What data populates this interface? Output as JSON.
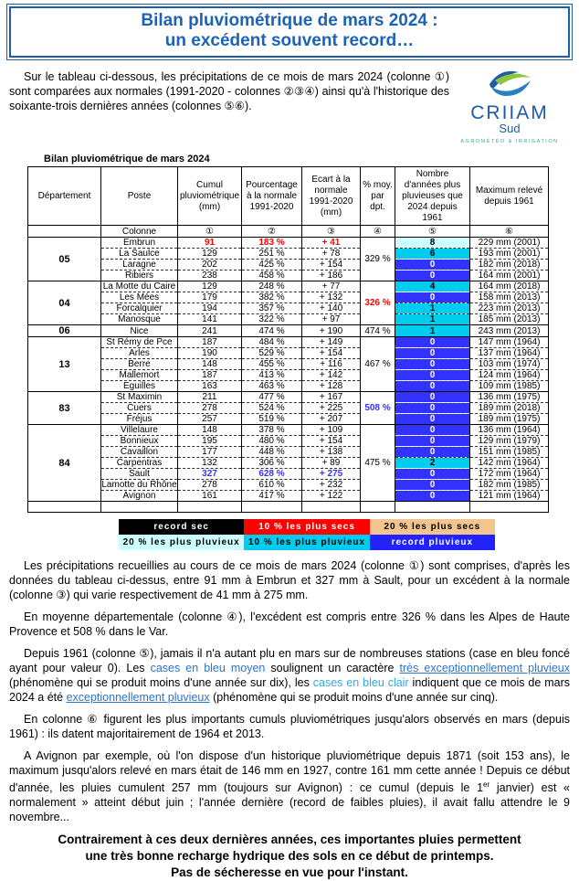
{
  "colors": {
    "title_blue": "#1c63b7",
    "border_blue": "#1f5ca8",
    "value_red": "#ff0000",
    "value_blue": "#3333ff",
    "cell_pale_cyan": "#ccffff",
    "cell_cyan": "#00ccee",
    "cell_dark_blue": "#3333ff",
    "legend_peach": "#f2c48e",
    "legend_red": "#ff0000",
    "legend_blue": "#2222ff",
    "logo_blue": "#1f5ca8",
    "logo_green": "#8cc63e",
    "logo_teal": "#3aa6a0"
  },
  "title": {
    "line1": "Bilan pluviométrique de mars 2024 :",
    "line2": "un excédent souvent record…"
  },
  "intro": "Sur le tableau ci-dessous, les précipitations de ce mois de mars 2024 (colonne ①) sont comparées aux normales (1991-2020 - colonnes ②③④) ainsi qu'à l'historique des soixante-trois dernières années (colonnes ⑤⑥).",
  "logo": {
    "word": "CRIIAM",
    "sub": "Sud",
    "tagline": "AGROMÉTÉO & IRRIGATION"
  },
  "table": {
    "title": "Bilan pluviométrique de mars 2024",
    "headers": [
      "Département",
      "Poste",
      "Cumul pluviométrique (mm)",
      "Pourcentage à la normale 1991-2020",
      "Ecart à la normale 1991-2020 (mm)",
      "% moy. par dpt.",
      "Nombre d'années plus pluvieuses que 2024 depuis 1961",
      "Maximum relevé depuis 1961"
    ],
    "colonne_row": {
      "label": "Colonne",
      "numbers": [
        "①",
        "②",
        "③",
        "④",
        "⑤",
        "⑥"
      ]
    },
    "groups": [
      {
        "dept": "05",
        "pct_moy": "329 %",
        "pct_hl": "",
        "rows": [
          {
            "poste": "Embrun",
            "cumul": "91",
            "pct": "183 %",
            "ecart": "+ 41",
            "hl": "red",
            "n": "8",
            "nbg": "pale",
            "max": "229 mm (2001)"
          },
          {
            "poste": "La Saulce",
            "cumul": "129",
            "pct": "251 %",
            "ecart": "+ 78",
            "hl": "",
            "n": "6",
            "nbg": "cyan",
            "max": "193 mm (2001)"
          },
          {
            "poste": "Laragne",
            "cumul": "202",
            "pct": "425 %",
            "ecart": "+ 154",
            "hl": "",
            "n": "0",
            "nbg": "blue",
            "max": "182 mm (2018)"
          },
          {
            "poste": "Ribiers",
            "cumul": "238",
            "pct": "458 %",
            "ecart": "+ 186",
            "hl": "",
            "n": "0",
            "nbg": "blue",
            "max": "164 mm (2001)"
          }
        ]
      },
      {
        "dept": "04",
        "pct_moy": "326 %",
        "pct_hl": "red",
        "rows": [
          {
            "poste": "La Motte du Caire",
            "cumul": "129",
            "pct": "248 %",
            "ecart": "+ 77",
            "hl": "",
            "n": "4",
            "nbg": "cyan",
            "max": "164 mm (2018)"
          },
          {
            "poste": "Les Mées",
            "cumul": "179",
            "pct": "382 %",
            "ecart": "+ 132",
            "hl": "",
            "n": "0",
            "nbg": "blue",
            "max": "158 mm (2013)"
          },
          {
            "poste": "Forcalquier",
            "cumul": "194",
            "pct": "357 %",
            "ecart": "+ 140",
            "hl": "",
            "n": "1",
            "nbg": "cyan",
            "max": "223 mm (2013)"
          },
          {
            "poste": "Manosque",
            "cumul": "141",
            "pct": "322 %",
            "ecart": "+ 97",
            "hl": "",
            "n": "1",
            "nbg": "cyan",
            "max": "185 mm (2013)"
          }
        ]
      },
      {
        "dept": "06",
        "pct_moy": "474 %",
        "pct_hl": "",
        "rows": [
          {
            "poste": "Nice",
            "cumul": "241",
            "pct": "474 %",
            "ecart": "+ 190",
            "hl": "",
            "n": "1",
            "nbg": "cyan",
            "max": "243 mm (2013)"
          }
        ]
      },
      {
        "dept": "13",
        "pct_moy": "467 %",
        "pct_hl": "",
        "rows": [
          {
            "poste": "St Rémy de Pce",
            "cumul": "187",
            "pct": "484 %",
            "ecart": "+ 149",
            "hl": "",
            "n": "0",
            "nbg": "blue",
            "max": "147 mm (1964)"
          },
          {
            "poste": "Arles",
            "cumul": "190",
            "pct": "529 %",
            "ecart": "+ 154",
            "hl": "",
            "n": "0",
            "nbg": "blue",
            "max": "137 mm (1964)"
          },
          {
            "poste": "Berre",
            "cumul": "148",
            "pct": "455 %",
            "ecart": "+ 116",
            "hl": "",
            "n": "0",
            "nbg": "blue",
            "max": "103 mm (1974)"
          },
          {
            "poste": "Mallemort",
            "cumul": "187",
            "pct": "413 %",
            "ecart": "+ 142",
            "hl": "",
            "n": "0",
            "nbg": "blue",
            "max": "124 mm (1964)"
          },
          {
            "poste": "Eguilles",
            "cumul": "163",
            "pct": "463 %",
            "ecart": "+ 128",
            "hl": "",
            "n": "0",
            "nbg": "blue",
            "max": "109 mm (1985)"
          }
        ]
      },
      {
        "dept": "83",
        "pct_moy": "508 %",
        "pct_hl": "blue",
        "rows": [
          {
            "poste": "St Maximin",
            "cumul": "211",
            "pct": "477 %",
            "ecart": "+ 167",
            "hl": "",
            "n": "0",
            "nbg": "blue",
            "max": "136 mm (1975)"
          },
          {
            "poste": "Cuers",
            "cumul": "278",
            "pct": "524 %",
            "ecart": "+ 225",
            "hl": "",
            "n": "0",
            "nbg": "blue",
            "max": "189 mm (2018)"
          },
          {
            "poste": "Fréjus",
            "cumul": "257",
            "pct": "519 %",
            "ecart": "+ 207",
            "hl": "",
            "n": "0",
            "nbg": "blue",
            "max": "189 mm (1975)"
          }
        ]
      },
      {
        "dept": "84",
        "pct_moy": "475 %",
        "pct_hl": "",
        "rows": [
          {
            "poste": "Villelaure",
            "cumul": "148",
            "pct": "378 %",
            "ecart": "+ 109",
            "hl": "",
            "n": "0",
            "nbg": "blue",
            "max": "136 mm (1964)"
          },
          {
            "poste": "Bonnieux",
            "cumul": "195",
            "pct": "480 %",
            "ecart": "+ 154",
            "hl": "",
            "n": "0",
            "nbg": "blue",
            "max": "129 mm (1979)"
          },
          {
            "poste": "Cavaillon",
            "cumul": "177",
            "pct": "448 %",
            "ecart": "+ 138",
            "hl": "",
            "n": "0",
            "nbg": "blue",
            "max": "151 mm (1985)"
          },
          {
            "poste": "Carpentras",
            "cumul": "132",
            "pct": "306 %",
            "ecart": "+ 89",
            "hl": "",
            "n": "2",
            "nbg": "cyan",
            "max": "142 mm (1964)"
          },
          {
            "poste": "Sault",
            "cumul": "327",
            "pct": "628 %",
            "ecart": "+ 275",
            "hl": "blue",
            "n": "0",
            "nbg": "blue",
            "max": "172 mm (1964)"
          },
          {
            "poste": "Lamotte du Rhône",
            "cumul": "278",
            "pct": "610 %",
            "ecart": "+ 232",
            "hl": "",
            "n": "0",
            "nbg": "blue",
            "max": "182 mm (1985)"
          },
          {
            "poste": "Avignon",
            "cumul": "161",
            "pct": "417 %",
            "ecart": "+ 122",
            "hl": "",
            "n": "0",
            "nbg": "blue",
            "max": "121 mm (1964)"
          }
        ]
      }
    ]
  },
  "legend": [
    {
      "label": "record sec",
      "cls": "lg-black"
    },
    {
      "label": "10 % les plus secs",
      "cls": "lg-red"
    },
    {
      "label": "20 % les plus secs",
      "cls": "lg-peach"
    },
    {
      "label": "20 % les plus pluvieux",
      "cls": "lg-pale"
    },
    {
      "label": "10 % les plus pluvieux",
      "cls": "lg-cyan"
    },
    {
      "label": "record pluvieux",
      "cls": "lg-blue"
    }
  ],
  "paragraphs": [
    [
      {
        "t": "Les précipitations recueillies au cours de ce mois de mars 2024 (colonne ①) sont comprises, d'après les données du tableau ci-dessus, entre 91 mm à Embrun et 327 mm à Sault, pour un excédent à la normale (colonne ③) qui varie respectivement de 41 mm à 275 mm."
      }
    ],
    [
      {
        "t": "En moyenne départementale (colonne ④), l'excédent est compris entre 326 % dans les Alpes de Haute Provence et 508 % dans le Var."
      }
    ],
    [
      {
        "t": "Depuis 1961 (colonne ⑤), jamais il n'a autant plu en mars sur de nombreuses stations (case en bleu foncé ayant pour valeur 0). Les "
      },
      {
        "t": "cases en bleu moyen",
        "c": "medblue"
      },
      {
        "t": " soulignent un caractère "
      },
      {
        "t": "très exceptionnellement pluvieux",
        "link": true
      },
      {
        "t": " (phénomène qui se produit moins d'une année sur dix), les "
      },
      {
        "t": "cases en bleu clair",
        "c": "lightblue"
      },
      {
        "t": " indiquent que ce mois de mars 2024 a été "
      },
      {
        "t": "exceptionnellement pluvieux",
        "link": true
      },
      {
        "t": " (phénomène qui se produit moins d'une année sur cinq)."
      }
    ],
    [
      {
        "t": "En colonne ⑥ figurent les plus importants cumuls pluviométriques jusqu'alors observés en mars (depuis 1961) : ils datent majoritairement de 1964 et 2013."
      }
    ],
    [
      {
        "t": "A Avignon par exemple, où l'on dispose d'un historique pluviométrique depuis 1871 (soit 153 ans), le maximum jusqu'alors relevé en mars était de 146 mm en 1927, contre 161 mm cette année ! Depuis ce début d'année, les pluies cumulent 257 mm (toujours sur Avignon) : ce cumul (depuis le 1"
      },
      {
        "t": "er",
        "sup": true
      },
      {
        "t": " janvier) est « normalement » atteint début juin ; l'année dernière (record de faibles pluies), il avait fallu attendre le 9 novembre..."
      }
    ]
  ],
  "footer": {
    "lines": [
      "Contrairement à ces deux dernières années, ces importantes pluies permettent",
      "une très bonne recharge hydrique des sols en ce début de printemps.",
      "Pas de sécheresse en vue pour l'instant."
    ]
  }
}
